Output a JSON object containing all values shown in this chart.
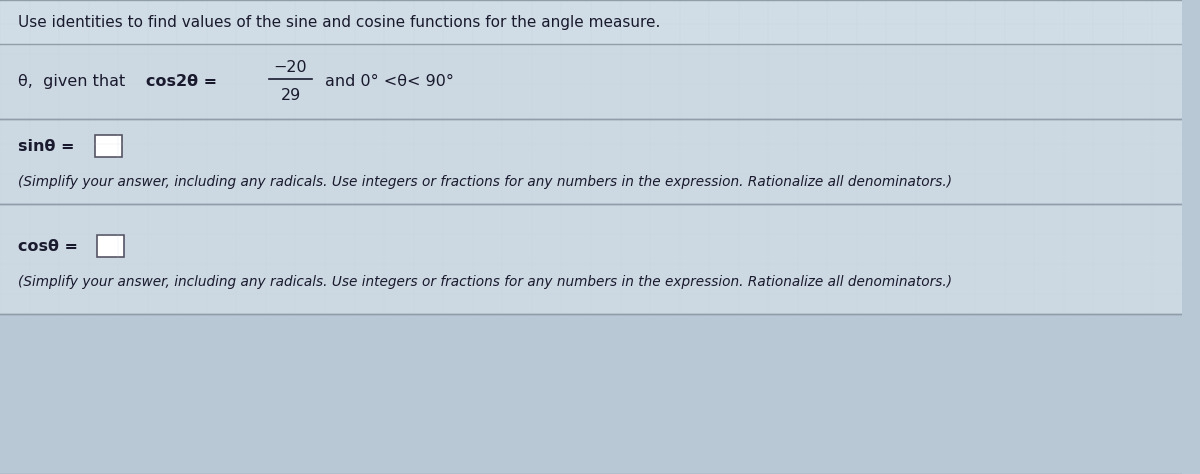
{
  "title_text": "Use identities to find values of the sine and cosine functions for the angle measure.",
  "theta_given": "θ,  given that ",
  "bold_cos": "cos2θ = ",
  "fraction_num": "−20",
  "fraction_den": "29",
  "condition": "and 0° <θ< 90°",
  "sin_label": "sinθ = ",
  "cos_label": "cosθ = ",
  "simplify_text": "(Simplify your answer, including any radicals. Use integers or fractions for any numbers in the expression. Rationalize all denominators.)",
  "bg_color": "#b8c8d4",
  "panel_color": "#c8d8e0",
  "line_color": "#909eaa",
  "text_color": "#1a1a2e",
  "title_fontsize": 11.0,
  "body_fontsize": 11.5,
  "small_fontsize": 9.8,
  "fig_width": 12.0,
  "fig_height": 4.74
}
